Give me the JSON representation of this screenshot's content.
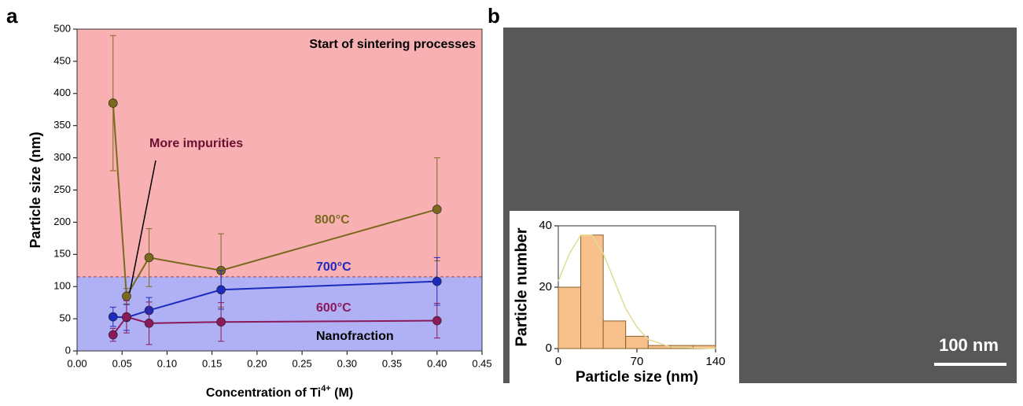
{
  "chart_data": [
    {
      "type": "line",
      "panel": "a",
      "ylabel": "Particle size (nm)",
      "xlabel": [
        "Concentration of Ti",
        "4+",
        " (M)"
      ],
      "x": [
        0.04,
        0.055,
        0.08,
        0.16,
        0.4
      ],
      "series": [
        {
          "name": "800°C",
          "color": "#7a6a1e",
          "values": [
            385,
            85,
            145,
            125,
            220
          ],
          "errors": [
            105,
            12,
            45,
            57,
            80
          ]
        },
        {
          "name": "700°C",
          "color": "#1c2bbd",
          "values": [
            53,
            52,
            63,
            95,
            108
          ],
          "errors": [
            15,
            20,
            20,
            30,
            37
          ]
        },
        {
          "name": "600°C",
          "color": "#8b1a5a",
          "values": [
            25,
            53,
            43,
            45,
            47
          ],
          "errors": [
            10,
            25,
            33,
            30,
            27
          ]
        }
      ],
      "boundary": 115,
      "annotations": [
        "Start of sintering processes",
        "More impurities",
        "Nanofraction"
      ],
      "xlim": [
        0,
        0.45
      ],
      "xticks": [
        {
          "value": 0,
          "label": "0.00"
        },
        {
          "value": 0.05,
          "label": "0.05"
        },
        {
          "value": 0.1,
          "label": "0.10"
        },
        {
          "value": 0.15,
          "label": "0.15"
        },
        {
          "value": 0.2,
          "label": "0.20"
        },
        {
          "value": 0.25,
          "label": "0.25"
        },
        {
          "value": 0.3,
          "label": "0.30"
        },
        {
          "value": 0.35,
          "label": "0.35"
        },
        {
          "value": 0.4,
          "label": "0.40"
        },
        {
          "value": 0.45,
          "label": "0.45"
        }
      ],
      "ylim": [
        0,
        500
      ],
      "yticks": [
        0,
        50,
        100,
        150,
        200,
        250,
        300,
        350,
        400,
        450,
        500
      ]
    },
    {
      "type": "histogram",
      "panel": "b",
      "xlabel": "Particle size (nm)",
      "ylabel": "Particle number",
      "bins": [
        0,
        20,
        40,
        60,
        80,
        100,
        120,
        140
      ],
      "values": [
        20,
        37,
        9,
        4,
        1,
        1,
        1
      ],
      "color": "#f8c08a",
      "fit": {
        "color": "#e2dc96",
        "x": [
          0,
          10,
          20,
          30,
          40,
          50,
          60,
          70,
          80,
          100,
          140
        ],
        "values": [
          22,
          31,
          37,
          37,
          31,
          22,
          13,
          7,
          3,
          0.5,
          0
        ]
      },
      "scale_bar": "100 nm",
      "xlim": [
        0,
        140
      ],
      "xticks": [
        0,
        70,
        140
      ],
      "ylim": [
        0,
        40
      ],
      "yticks": [
        0,
        20,
        40
      ]
    }
  ]
}
